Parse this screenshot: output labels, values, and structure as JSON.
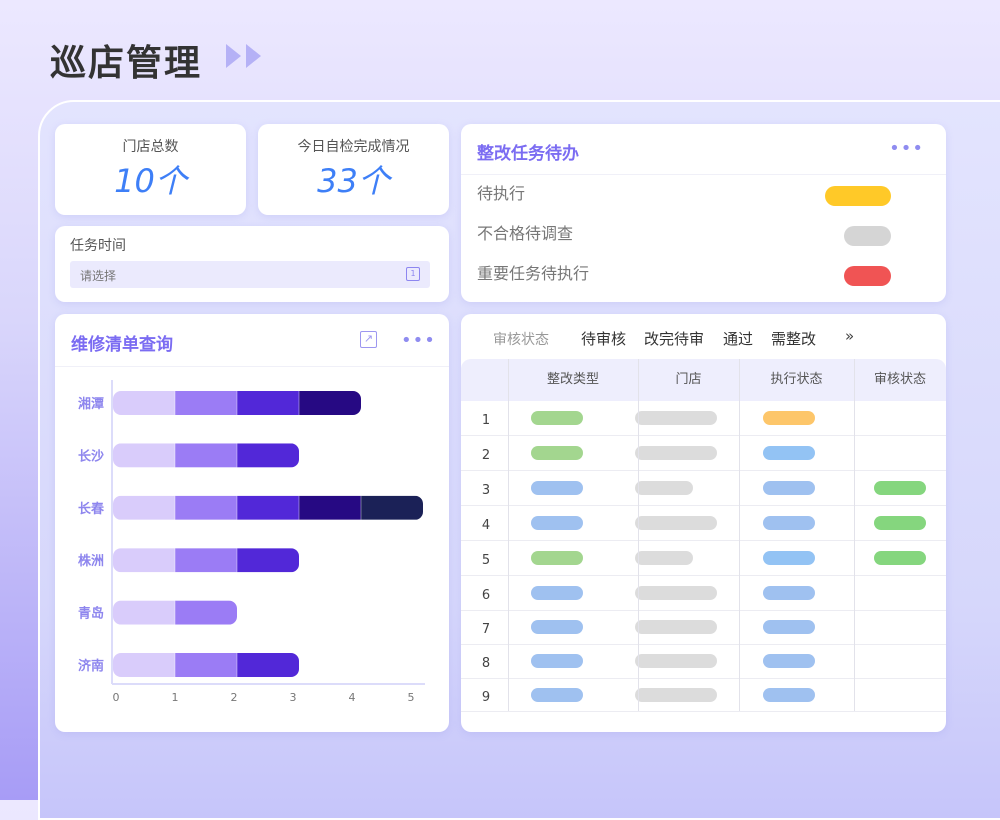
{
  "page": {
    "title": "巡店管理"
  },
  "stats": [
    {
      "label": "门店总数",
      "value": "10个"
    },
    {
      "label": "今日自检完成情况",
      "value": "33个"
    }
  ],
  "task_time": {
    "label": "任务时间",
    "placeholder": "请选择"
  },
  "todo": {
    "title": "整改任务待办",
    "items": [
      {
        "label": "待执行",
        "color": "#ffc928"
      },
      {
        "label": "不合格待调查",
        "color": "#d5d5d5"
      },
      {
        "label": "重要任务待执行",
        "color": "#f05454"
      }
    ]
  },
  "chart_panel": {
    "title": "维修清单查询"
  },
  "chart_data": {
    "type": "bar",
    "orientation": "horizontal",
    "stacked": true,
    "categories": [
      "湘潭",
      "长沙",
      "长春",
      "株洲",
      "青岛",
      "济南"
    ],
    "values": [
      4,
      3,
      5,
      3,
      2,
      3
    ],
    "segment_colors": [
      "#d9ccfb",
      "#9b7cf5",
      "#5228d8",
      "#260983",
      "#1b2157"
    ],
    "xticks": [
      "0",
      "1",
      "2",
      "3",
      "4",
      "5"
    ],
    "xlim": [
      0,
      5
    ],
    "grid": false
  },
  "review": {
    "filter_label": "审核状态",
    "filters": [
      "待审核",
      "改完待审",
      "通过",
      "需整改"
    ],
    "more": "»",
    "columns": [
      "整改类型",
      "门店",
      "执行状态",
      "审核状态"
    ],
    "rows": [
      {
        "n": "1",
        "type": "#a3d68f",
        "store": "long",
        "exec": "#fdc66a",
        "audit": null
      },
      {
        "n": "2",
        "type": "#a3d68f",
        "store": "long",
        "exec": "#93c3f4",
        "audit": null
      },
      {
        "n": "3",
        "type": "#9fc1f0",
        "store": "short",
        "exec": "#9fc1f0",
        "audit": "#85d67e"
      },
      {
        "n": "4",
        "type": "#9fc1f0",
        "store": "long",
        "exec": "#9fc1f0",
        "audit": "#85d67e"
      },
      {
        "n": "5",
        "type": "#a3d68f",
        "store": "short",
        "exec": "#93c3f4",
        "audit": "#85d67e"
      },
      {
        "n": "6",
        "type": "#9fc1f0",
        "store": "long",
        "exec": "#9fc1f0",
        "audit": null
      },
      {
        "n": "7",
        "type": "#9fc1f0",
        "store": "long",
        "exec": "#9fc1f0",
        "audit": null
      },
      {
        "n": "8",
        "type": "#9fc1f0",
        "store": "long",
        "exec": "#9fc1f0",
        "audit": null
      },
      {
        "n": "9",
        "type": "#9fc1f0",
        "store": "long",
        "exec": "#9fc1f0",
        "audit": null
      }
    ]
  }
}
